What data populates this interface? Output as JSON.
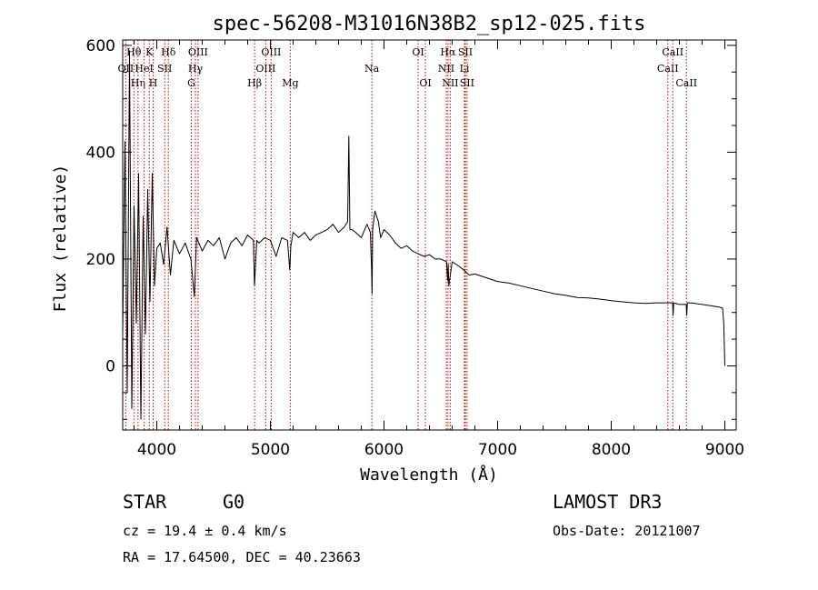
{
  "chart_data": {
    "type": "line",
    "title": "spec-56208-M31016N38B2_sp12-025.fits",
    "xlabel": "Wavelength (Å)",
    "ylabel": "Flux (relative)",
    "xlim": [
      3700,
      9100
    ],
    "ylim": [
      -120,
      610
    ],
    "xticks": [
      4000,
      5000,
      6000,
      7000,
      8000,
      9000
    ],
    "yticks": [
      0,
      200,
      400,
      600
    ],
    "series": [
      {
        "name": "Flux",
        "color": "#000000",
        "x": [
          3700,
          3720,
          3740,
          3760,
          3780,
          3800,
          3820,
          3840,
          3860,
          3880,
          3900,
          3920,
          3940,
          3960,
          3980,
          4000,
          4030,
          4060,
          4090,
          4120,
          4150,
          4200,
          4250,
          4300,
          4330,
          4350,
          4400,
          4450,
          4500,
          4550,
          4600,
          4650,
          4700,
          4750,
          4800,
          4850,
          4860,
          4880,
          4900,
          4950,
          5000,
          5050,
          5100,
          5150,
          5170,
          5180,
          5200,
          5250,
          5300,
          5350,
          5400,
          5450,
          5500,
          5550,
          5600,
          5650,
          5680,
          5690,
          5700,
          5720,
          5750,
          5800,
          5850,
          5880,
          5890,
          5895,
          5900,
          5920,
          5950,
          5970,
          6000,
          6050,
          6100,
          6150,
          6200,
          6250,
          6300,
          6350,
          6400,
          6450,
          6500,
          6550,
          6560,
          6565,
          6570,
          6600,
          6650,
          6700,
          6750,
          6800,
          6900,
          7000,
          7100,
          7200,
          7300,
          7400,
          7500,
          7600,
          7700,
          7800,
          7900,
          8000,
          8100,
          8200,
          8300,
          8400,
          8500,
          8540,
          8545,
          8550,
          8600,
          8660,
          8665,
          8670,
          8700,
          8800,
          8900,
          8950,
          8980,
          8990,
          9000
        ],
        "y": [
          60,
          420,
          -50,
          590,
          -80,
          300,
          80,
          360,
          -100,
          280,
          60,
          330,
          120,
          360,
          150,
          220,
          230,
          190,
          260,
          170,
          235,
          210,
          230,
          200,
          130,
          240,
          215,
          235,
          225,
          240,
          200,
          230,
          240,
          225,
          245,
          235,
          150,
          235,
          230,
          240,
          235,
          205,
          240,
          235,
          180,
          225,
          250,
          240,
          250,
          235,
          245,
          250,
          255,
          265,
          250,
          260,
          270,
          430,
          255,
          255,
          250,
          240,
          265,
          250,
          180,
          135,
          255,
          290,
          270,
          240,
          255,
          245,
          230,
          220,
          225,
          215,
          210,
          205,
          208,
          200,
          200,
          195,
          160,
          190,
          150,
          195,
          188,
          180,
          170,
          172,
          165,
          158,
          155,
          150,
          145,
          140,
          135,
          132,
          128,
          127,
          125,
          122,
          120,
          118,
          117,
          118,
          118,
          118,
          95,
          118,
          115,
          115,
          95,
          118,
          118,
          115,
          112,
          110,
          108,
          80,
          0
        ]
      }
    ],
    "lines": [
      {
        "name": "OII",
        "wavelength": 3727,
        "row": 1
      },
      {
        "name": "Hθ",
        "wavelength": 3798,
        "row": 0
      },
      {
        "name": "Hη",
        "wavelength": 3835,
        "row": 2
      },
      {
        "name": "HeI",
        "wavelength": 3889,
        "row": 1
      },
      {
        "name": "K",
        "wavelength": 3934,
        "row": 0
      },
      {
        "name": "H",
        "wavelength": 3968,
        "row": 2
      },
      {
        "name": "SII",
        "wavelength": 4070,
        "row": 1
      },
      {
        "name": "Hδ",
        "wavelength": 4102,
        "row": 0
      },
      {
        "name": "G",
        "wavelength": 4304,
        "row": 2
      },
      {
        "name": "Hγ",
        "wavelength": 4340,
        "row": 1
      },
      {
        "name": "OIII",
        "wavelength": 4363,
        "row": 0
      },
      {
        "name": "Hβ",
        "wavelength": 4861,
        "row": 2
      },
      {
        "name": "OIII",
        "wavelength": 4959,
        "row": 1
      },
      {
        "name": "OIII",
        "wavelength": 5007,
        "row": 0
      },
      {
        "name": "Mg",
        "wavelength": 5175,
        "row": 2
      },
      {
        "name": "Na",
        "wavelength": 5893,
        "row": 1
      },
      {
        "name": "OI",
        "wavelength": 6300,
        "row": 0
      },
      {
        "name": "OI",
        "wavelength": 6364,
        "row": 2
      },
      {
        "name": "NII",
        "wavelength": 6548,
        "row": 1
      },
      {
        "name": "Hα",
        "wavelength": 6563,
        "row": 0
      },
      {
        "name": "NII",
        "wavelength": 6583,
        "row": 2
      },
      {
        "name": "Li",
        "wavelength": 6708,
        "row": 1
      },
      {
        "name": "SII",
        "wavelength": 6716,
        "row": 0
      },
      {
        "name": "SII",
        "wavelength": 6731,
        "row": 2
      },
      {
        "name": "CaII",
        "wavelength": 8498,
        "row": 1
      },
      {
        "name": "CaII",
        "wavelength": 8542,
        "row": 0
      },
      {
        "name": "CaII",
        "wavelength": 8662,
        "row": 2
      }
    ],
    "line_color": "#cc0000"
  },
  "info": {
    "class": "STAR",
    "subclass": "G0",
    "cz": "cz = 19.4 ± 0.4 km/s",
    "coords": "RA =  17.64500, DEC =  40.23663",
    "survey": "LAMOST DR3",
    "obs_date": "Obs-Date: 20121007"
  }
}
